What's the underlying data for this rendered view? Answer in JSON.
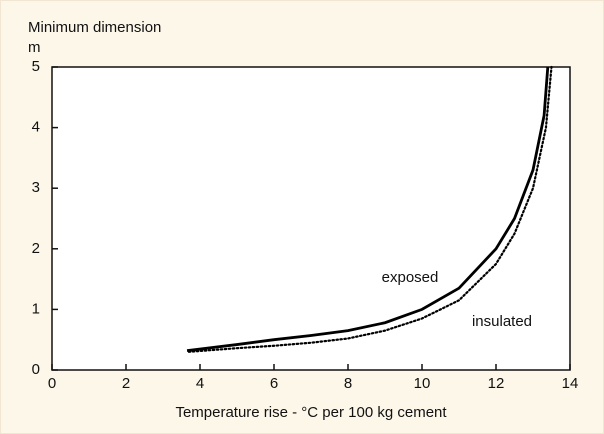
{
  "chart_data": {
    "type": "line",
    "y_label": [
      "Minimum dimension",
      "m"
    ],
    "x_label": "Temperature rise - °C per 100 kg cement",
    "xlim": [
      0,
      14
    ],
    "xticks": [
      0,
      2,
      4,
      6,
      8,
      10,
      12,
      14
    ],
    "ylim": [
      0,
      5
    ],
    "yticks": [
      0,
      1,
      2,
      3,
      4,
      5
    ],
    "series": [
      {
        "name": "exposed",
        "color": "#000000",
        "dash": "solid",
        "x": [
          3.65,
          5,
          6,
          7,
          8,
          9,
          10,
          11,
          12,
          12.5,
          13,
          13.3,
          13.4
        ],
        "values": [
          0.32,
          0.42,
          0.5,
          0.57,
          0.65,
          0.78,
          1.0,
          1.35,
          2.0,
          2.5,
          3.3,
          4.2,
          5
        ]
      },
      {
        "name": "insulated",
        "color": "#000000",
        "dash": "dotted",
        "x": [
          3.7,
          5,
          6,
          7,
          8,
          9,
          10,
          11,
          12,
          12.5,
          13,
          13.35,
          13.5
        ],
        "values": [
          0.3,
          0.36,
          0.4,
          0.45,
          0.52,
          0.65,
          0.85,
          1.15,
          1.75,
          2.25,
          3.0,
          4.0,
          5
        ]
      }
    ]
  }
}
